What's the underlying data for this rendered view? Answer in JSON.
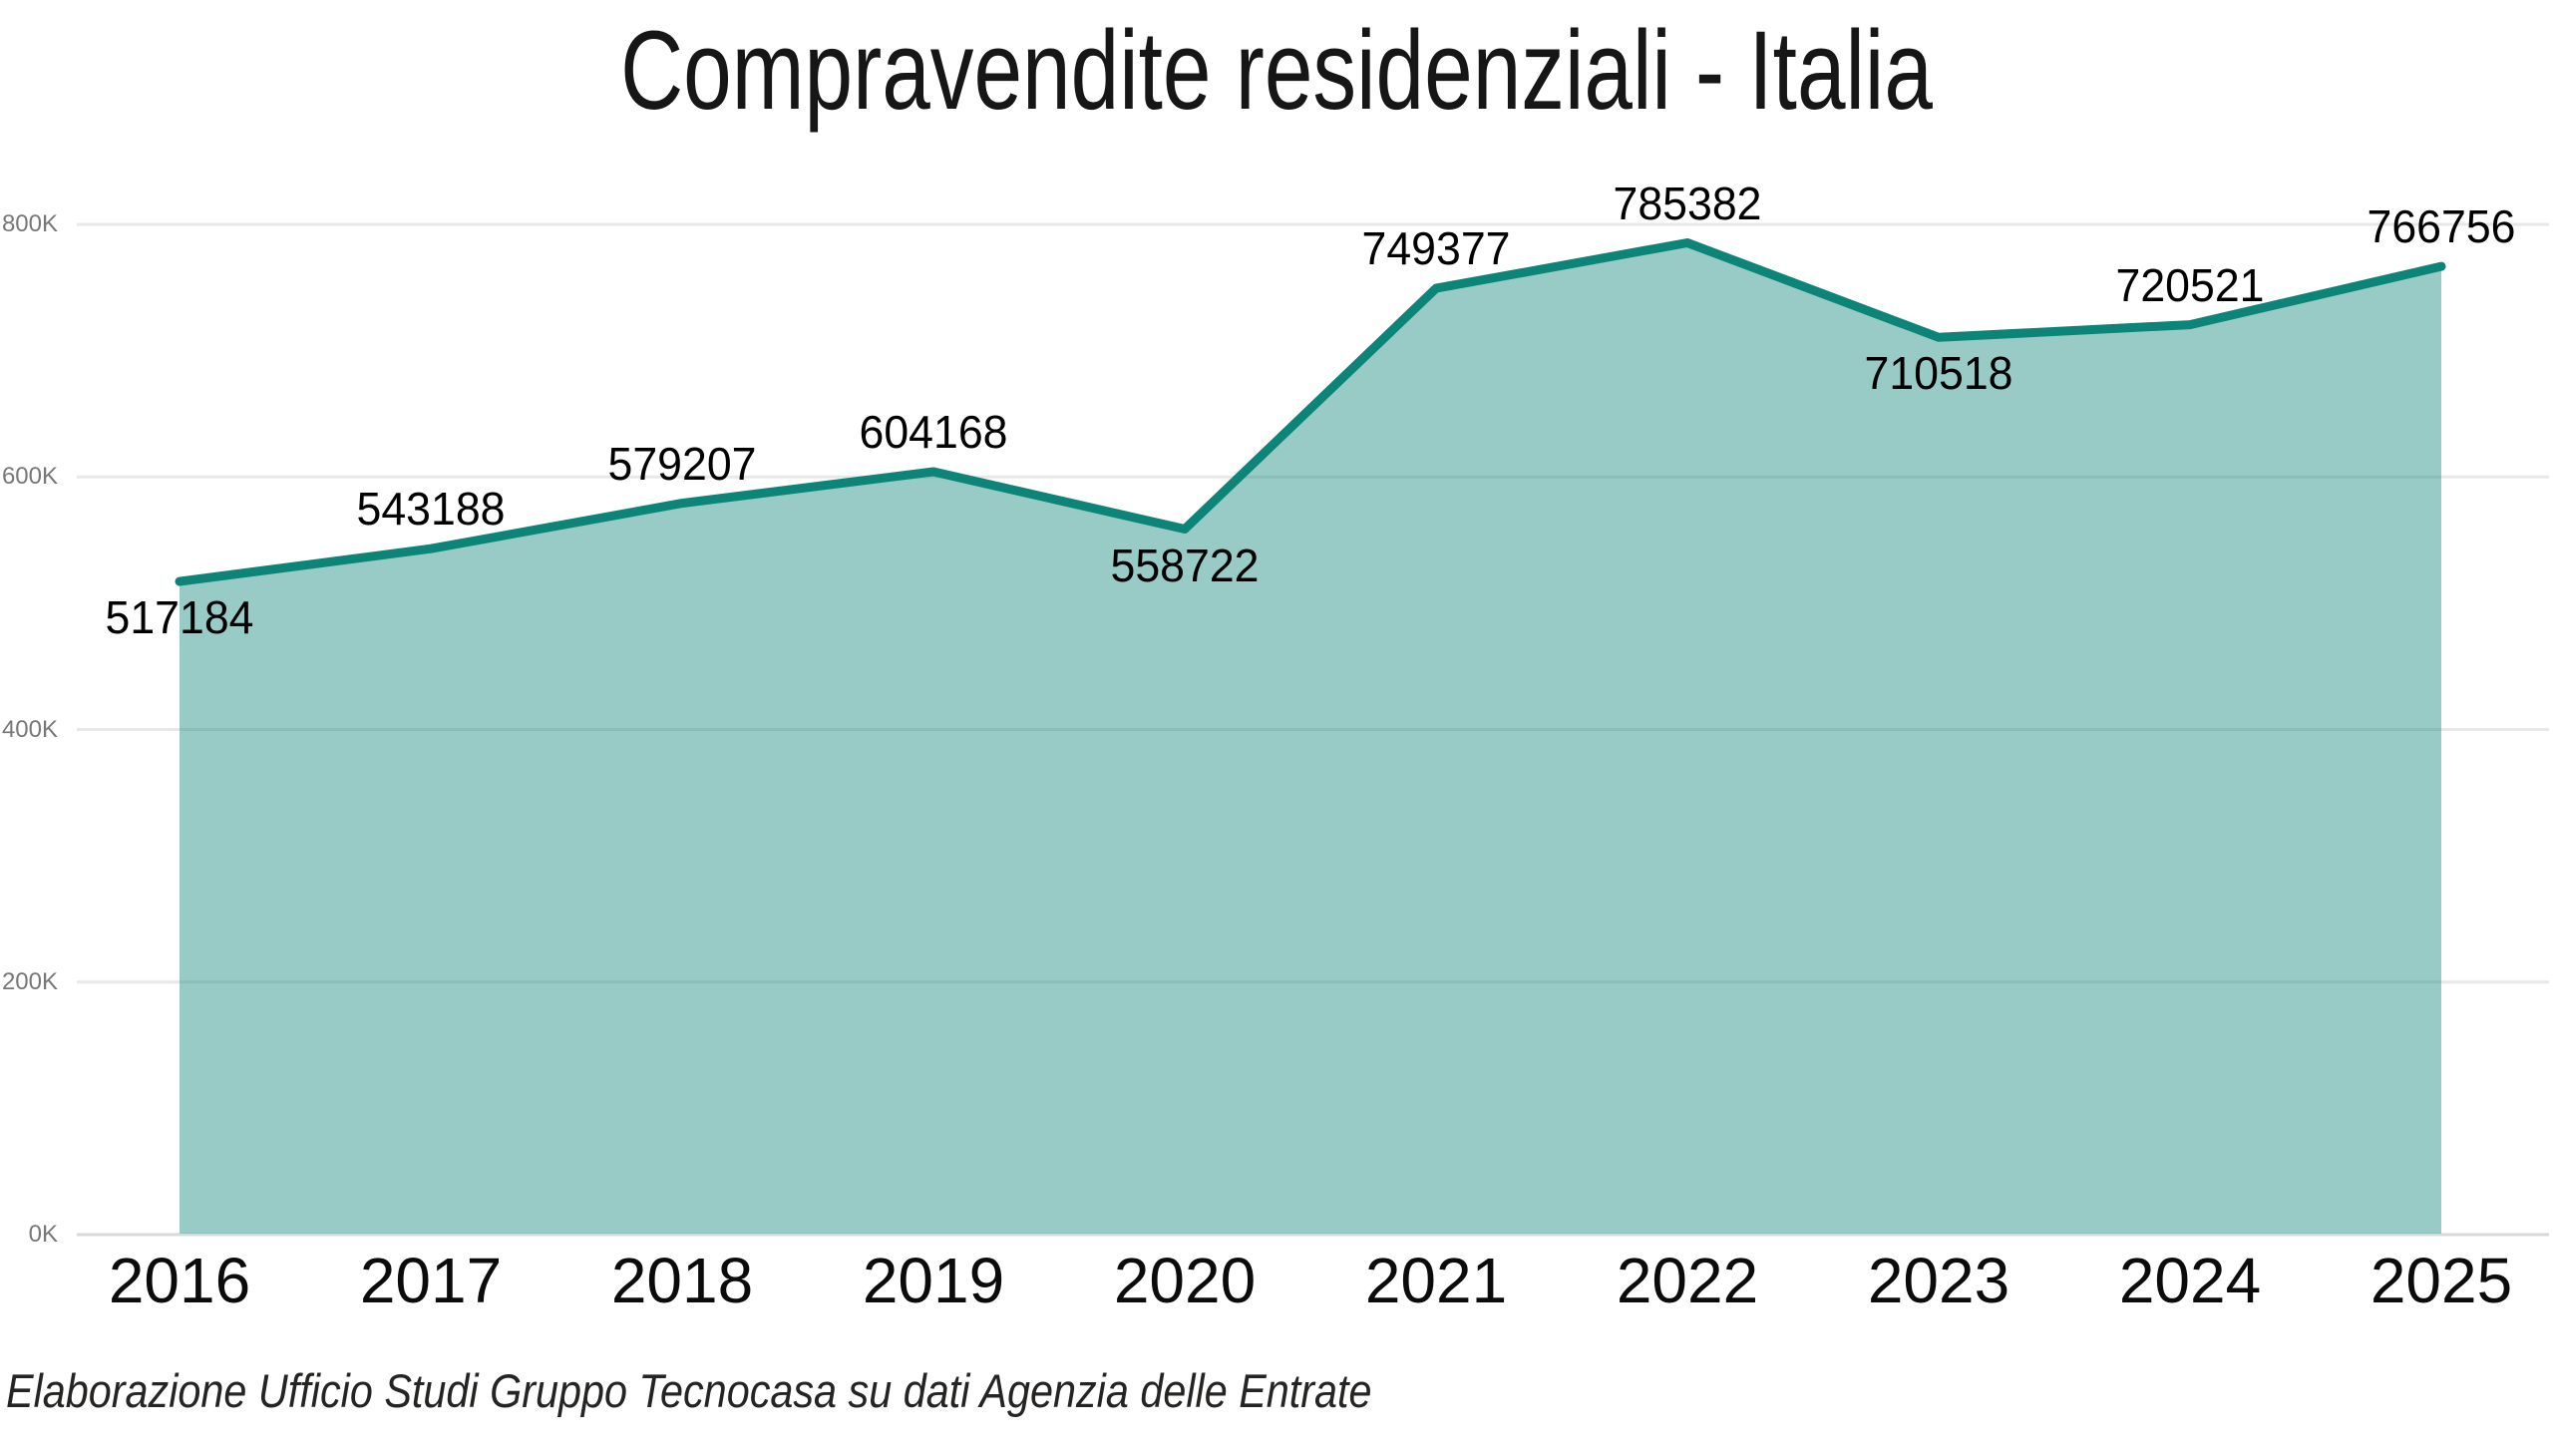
{
  "chart_data": {
    "type": "area",
    "title": "Compravendite residenziali - Italia",
    "categories": [
      "2016",
      "2017",
      "2018",
      "2019",
      "2020",
      "2021",
      "2022",
      "2023",
      "2024",
      "2025"
    ],
    "values": [
      517184,
      543188,
      579207,
      604168,
      558722,
      749377,
      785382,
      710518,
      720521,
      766756
    ],
    "data_label_positions": [
      "below",
      "above",
      "above",
      "above",
      "below",
      "above",
      "above",
      "below",
      "above",
      "above"
    ],
    "xlabel": "",
    "ylabel": "",
    "ylim": [
      0,
      800000
    ],
    "yticks": [
      0,
      200000,
      400000,
      600000,
      800000
    ],
    "ytick_labels": [
      "0K",
      "200K",
      "400K",
      "600K",
      "800K"
    ],
    "grid": "horizontal gridlines on, legend off, data labels on",
    "legend": "none",
    "colors": {
      "line": "#0d8478",
      "fill": "rgba(13,132,120,0.42)",
      "gridline": "#e8e8e8",
      "baseline": "#d9d9d9",
      "y_axis_text": "#777777",
      "x_axis_text": "#0b0b0b",
      "data_label_text": "#000000",
      "title_text": "#161616",
      "background": "#ffffff"
    }
  },
  "footer": {
    "source_text": "Elaborazione Ufficio Studi Gruppo Tecnocasa su dati Agenzia delle Entrate"
  }
}
